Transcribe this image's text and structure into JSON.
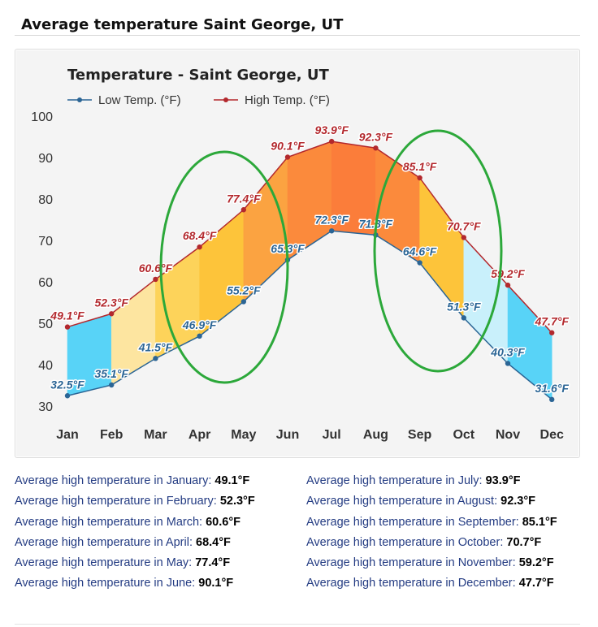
{
  "page": {
    "title": "Average temperature Saint George, UT"
  },
  "chart_data": {
    "type": "line",
    "title": "Temperature - Saint George, UT",
    "categories": [
      "Jan",
      "Feb",
      "Mar",
      "Apr",
      "May",
      "Jun",
      "Jul",
      "Aug",
      "Sep",
      "Oct",
      "Nov",
      "Dec"
    ],
    "series": [
      {
        "name": "Low Temp. (°F)",
        "color": "#2b6595",
        "values": [
          32.5,
          35.1,
          41.5,
          46.9,
          55.2,
          65.3,
          72.3,
          71.3,
          64.6,
          51.3,
          40.3,
          31.6
        ],
        "labels": [
          "32.5°F",
          "35.1°F",
          "41.5°F",
          "46.9°F",
          "55.2°F",
          "65.3°F",
          "72.3°F",
          "71.3°F",
          "64.6°F",
          "51.3°F",
          "40.3°F",
          "31.6°F"
        ]
      },
      {
        "name": "High Temp. (°F)",
        "color": "#b3282d",
        "values": [
          49.1,
          52.3,
          60.6,
          68.4,
          77.4,
          90.1,
          93.9,
          92.3,
          85.1,
          70.7,
          59.2,
          47.7
        ],
        "labels": [
          "49.1°F",
          "52.3°F",
          "60.6°F",
          "68.4°F",
          "77.4°F",
          "90.1°F",
          "93.9°F",
          "92.3°F",
          "85.1°F",
          "70.7°F",
          "59.2°F",
          "47.7°F"
        ]
      }
    ],
    "band_colors": [
      "#58d3f7",
      "#fde5a0",
      "#fdd35a",
      "#fdc43a",
      "#fba341",
      "#fb8a3c",
      "#fb7d3a",
      "#fb8a3c",
      "#fdc43a",
      "#c9f0fb",
      "#58d3f7",
      "#58d3f7"
    ],
    "ylim": [
      30,
      100
    ],
    "yticks": [
      "30",
      "40",
      "50",
      "60",
      "70",
      "80",
      "90",
      "100"
    ],
    "ytick_values": [
      30,
      40,
      50,
      60,
      70,
      80,
      90,
      100
    ],
    "grid": false,
    "legend": "top-left",
    "annotations": [
      {
        "type": "ellipse",
        "color": "#2ca83a",
        "covers": [
          "Apr",
          "May"
        ]
      },
      {
        "type": "ellipse",
        "color": "#2ca83a",
        "covers": [
          "Sep",
          "Oct"
        ]
      }
    ]
  },
  "summary": {
    "left": [
      {
        "label": "Average high temperature in January:",
        "value": "49.1°F"
      },
      {
        "label": "Average high temperature in February:",
        "value": "52.3°F"
      },
      {
        "label": "Average high temperature in March:",
        "value": "60.6°F"
      },
      {
        "label": "Average high temperature in April:",
        "value": "68.4°F"
      },
      {
        "label": "Average high temperature in May:",
        "value": "77.4°F"
      },
      {
        "label": "Average high temperature in June:",
        "value": "90.1°F"
      }
    ],
    "right": [
      {
        "label": "Average high temperature in July:",
        "value": "93.9°F"
      },
      {
        "label": "Average high temperature in August:",
        "value": "92.3°F"
      },
      {
        "label": "Average high temperature in September:",
        "value": "85.1°F"
      },
      {
        "label": "Average high temperature in October:",
        "value": "70.7°F"
      },
      {
        "label": "Average high temperature in November:",
        "value": "59.2°F"
      },
      {
        "label": "Average high temperature in December:",
        "value": "47.7°F"
      }
    ]
  }
}
